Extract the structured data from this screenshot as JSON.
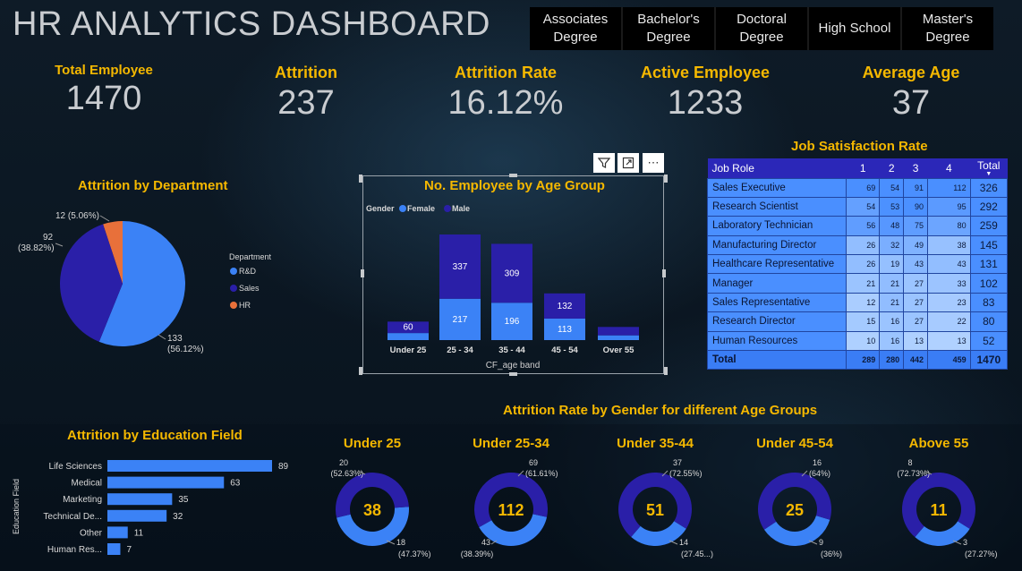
{
  "header": {
    "title": "HR ANALYTICS DASHBOARD",
    "education_slicer": [
      "Associates\nDegree",
      "Bachelor's\nDegree",
      "Doctoral\nDegree",
      "High School",
      "Master's\nDegree"
    ]
  },
  "kpis": [
    {
      "label": "Total Employee",
      "value": "1470"
    },
    {
      "label": "Attrition",
      "value": "237"
    },
    {
      "label": "Attrition Rate",
      "value": "16.12%"
    },
    {
      "label": "Active Employee",
      "value": "1233"
    },
    {
      "label": "Average Age",
      "value": "37"
    }
  ],
  "colors": {
    "accent": "#f5b800",
    "blue_light": "#3b82f6",
    "blue_dark": "#2a1fa8",
    "orange": "#e8703a",
    "kpi_text": "#c9ccd0"
  },
  "visual_toolbar": {
    "filter_icon": "filter-icon",
    "focus_icon": "focus-mode-icon",
    "more_icon": "more-options-icon",
    "more_glyph": "⋯"
  },
  "chart_data": [
    {
      "id": "attrition_by_department",
      "type": "pie",
      "title": "Attrition by Department",
      "legend_title": "Department",
      "legend_position": "right",
      "slices": [
        {
          "name": "R&D",
          "value": 133,
          "label": "133",
          "pct": "(56.12%)",
          "color": "#3b82f6"
        },
        {
          "name": "Sales",
          "value": 92,
          "label": "92",
          "pct": "(38.82%)",
          "color": "#2a1fa8"
        },
        {
          "name": "HR",
          "value": 12,
          "label": "12 (5.06%)",
          "pct": "",
          "color": "#e8703a"
        }
      ]
    },
    {
      "id": "employee_by_age_group",
      "type": "bar",
      "stacked": true,
      "title": "No. Employee by Age Group",
      "legend_title": "Gender",
      "legend_position": "top-left",
      "xlabel": "CF_age band",
      "categories": [
        "Under 25",
        "25 - 34",
        "35 - 44",
        "45 - 54",
        "Over 55"
      ],
      "series": [
        {
          "name": "Female",
          "color": "#3b82f6",
          "values": [
            37,
            217,
            196,
            113,
            25
          ]
        },
        {
          "name": "Male",
          "color": "#2a1fa8",
          "values": [
            60,
            337,
            309,
            132,
            44
          ]
        }
      ],
      "visible_labels": {
        "Female": [
          "",
          "217",
          "196",
          "113",
          ""
        ],
        "Male": [
          "60",
          "337",
          "309",
          "132",
          ""
        ]
      }
    },
    {
      "id": "job_satisfaction",
      "type": "table",
      "title": "Job Satisfaction Rate",
      "columns": [
        "Job Role",
        "1",
        "2",
        "3",
        "4",
        "Total"
      ],
      "rows": [
        [
          "Sales Executive",
          "69",
          "54",
          "91",
          "112",
          "326"
        ],
        [
          "Research Scientist",
          "54",
          "53",
          "90",
          "95",
          "292"
        ],
        [
          "Laboratory Technician",
          "56",
          "48",
          "75",
          "80",
          "259"
        ],
        [
          "Manufacturing Director",
          "26",
          "32",
          "49",
          "38",
          "145"
        ],
        [
          "Healthcare Representative",
          "26",
          "19",
          "43",
          "43",
          "131"
        ],
        [
          "Manager",
          "21",
          "21",
          "27",
          "33",
          "102"
        ],
        [
          "Sales Representative",
          "12",
          "21",
          "27",
          "23",
          "83"
        ],
        [
          "Research Director",
          "15",
          "16",
          "27",
          "22",
          "80"
        ],
        [
          "Human Resources",
          "10",
          "16",
          "13",
          "13",
          "52"
        ]
      ],
      "total_row": [
        "Total",
        "289",
        "280",
        "442",
        "459",
        "1470"
      ],
      "heat": [
        [
          1.0,
          1.0,
          1.0,
          1.0
        ],
        [
          0.78,
          0.98,
          0.99,
          0.85
        ],
        [
          0.81,
          0.89,
          0.82,
          0.71
        ],
        [
          0.38,
          0.59,
          0.54,
          0.34
        ],
        [
          0.38,
          0.35,
          0.47,
          0.38
        ],
        [
          0.3,
          0.39,
          0.3,
          0.29
        ],
        [
          0.17,
          0.39,
          0.3,
          0.21
        ],
        [
          0.22,
          0.3,
          0.3,
          0.2
        ],
        [
          0.14,
          0.3,
          0.14,
          0.12
        ]
      ]
    },
    {
      "id": "attrition_by_education_field",
      "type": "bar",
      "orientation": "horizontal",
      "title": "Attrition by Education Field",
      "ylabel": "Education Field",
      "categories": [
        "Life Sciences",
        "Medical",
        "Marketing",
        "Technical De...",
        "Other",
        "Human Res..."
      ],
      "values": [
        89,
        63,
        35,
        32,
        11,
        7
      ],
      "color": "#3b82f6"
    },
    {
      "id": "attrition_rate_by_gender_age",
      "type": "pie",
      "title": "Attrition Rate by Gender for different Age Groups",
      "donuts": [
        {
          "title": "Under 25",
          "center": "38",
          "male": 20,
          "female": 18,
          "male_label": "20",
          "male_pct": "(52.63%)",
          "female_label": "18",
          "female_pct": "(47.37%)"
        },
        {
          "title": "Under 25-34",
          "center": "112",
          "male": 69,
          "female": 43,
          "male_label": "69",
          "male_pct": "(61.61%)",
          "female_label": "43",
          "female_pct": "(38.39%)"
        },
        {
          "title": "Under 35-44",
          "center": "51",
          "male": 37,
          "female": 14,
          "male_label": "37",
          "male_pct": "(72.55%)",
          "female_label": "14",
          "female_pct": "(27.45...)"
        },
        {
          "title": "Under 45-54",
          "center": "25",
          "male": 16,
          "female": 9,
          "male_label": "16",
          "male_pct": "(64%)",
          "female_label": "9",
          "female_pct": "(36%)"
        },
        {
          "title": "Above 55",
          "center": "11",
          "male": 8,
          "female": 3,
          "male_label": "8",
          "male_pct": "(72.73%)",
          "female_label": "3",
          "female_pct": "(27.27%)"
        }
      ]
    }
  ]
}
